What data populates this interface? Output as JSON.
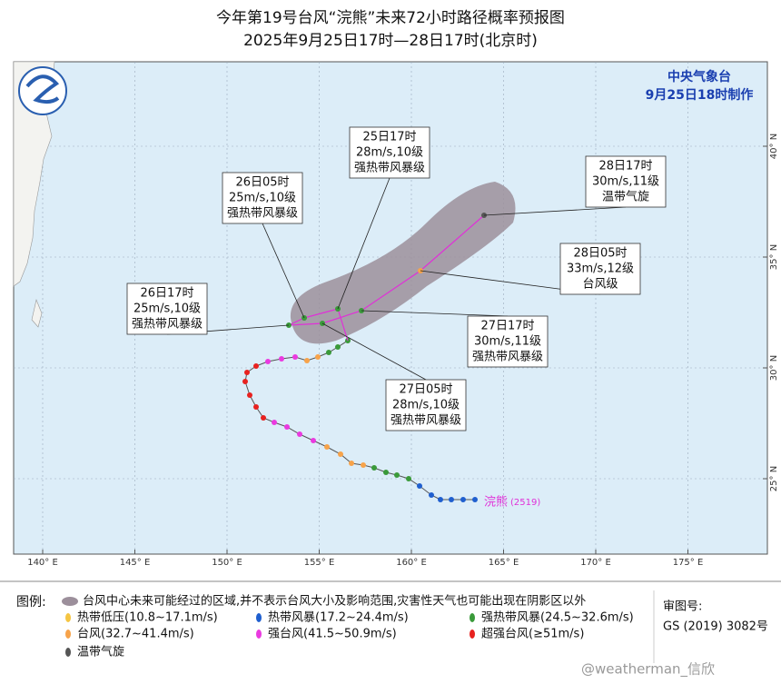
{
  "header": {
    "title": "今年第19号台风“浣熊”未来72小时路径概率预报图",
    "subtitle": "2025年9月25日17时—28日17时(北京时)"
  },
  "agency": {
    "name": "中央气象台",
    "issued": "9月25日18时制作"
  },
  "forecasts": [
    {
      "time": "25日17时",
      "wind": "28m/s,10级",
      "level": "强热带风暴级"
    },
    {
      "time": "26日05时",
      "wind": "25m/s,10级",
      "level": "强热带风暴级"
    },
    {
      "time": "26日17时",
      "wind": "25m/s,10级",
      "level": "强热带风暴级"
    },
    {
      "time": "27日05时",
      "wind": "28m/s,10级",
      "level": "强热带风暴级"
    },
    {
      "time": "27日17时",
      "wind": "30m/s,11级",
      "level": "强热带风暴级"
    },
    {
      "time": "28日05时",
      "wind": "33m/s,12级",
      "level": "台风级"
    },
    {
      "time": "28日17时",
      "wind": "30m/s,11级",
      "level": "温带气旋"
    }
  ],
  "storm": {
    "name": "浣熊",
    "id": "(2519)"
  },
  "axes": {
    "longitudes": [
      "140° E",
      "145° E",
      "150° E",
      "155° E",
      "160° E",
      "165° E",
      "170° E",
      "175° E"
    ],
    "latitudes": [
      "25° N",
      "30° N",
      "35° N",
      "40° N"
    ]
  },
  "legend": {
    "title": "图例:",
    "items": [
      {
        "label": "台风中心未来可能经过的区域,并不表示台风大小及影响范围,灾害性天气也可能出现在阴影区以外",
        "color": "#9c8f9b"
      },
      {
        "label": "热带低压(10.8~17.1m/s)",
        "color": "#f5c542"
      },
      {
        "label": "热带风暴(17.2~24.4m/s)",
        "color": "#1f5fcf"
      },
      {
        "label": "强热带风暴(24.5~32.6m/s)",
        "color": "#3a9a3a"
      },
      {
        "label": "台风(32.7~41.4m/s)",
        "color": "#f7a34a"
      },
      {
        "label": "强台风(41.5~50.9m/s)",
        "color": "#ea3ae0"
      },
      {
        "label": "超强台风(≥51m/s)",
        "color": "#e8211f"
      },
      {
        "label": "温带气旋",
        "color": "#555555"
      }
    ]
  },
  "review": {
    "label": "审图号:",
    "number": "GS (2019) 3082号"
  },
  "watermark": "@weatherman_信欣"
}
